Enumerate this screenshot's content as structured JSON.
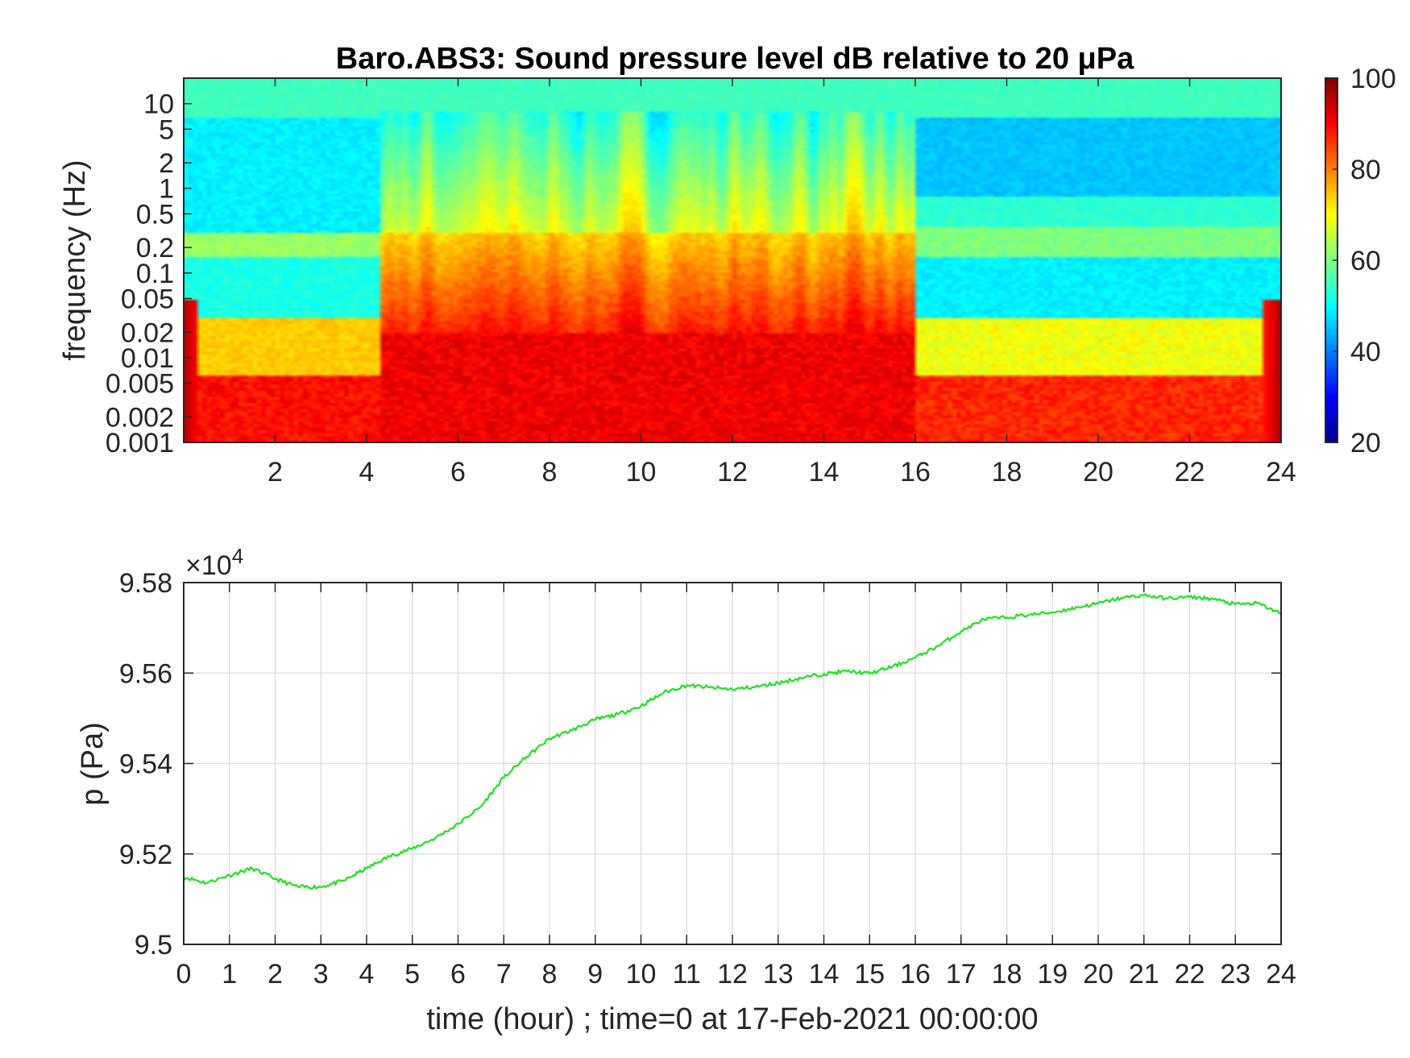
{
  "chart_data": [
    {
      "type": "heatmap",
      "title": "Baro.ABS3: Sound pressure level dB relative to 20 μPa",
      "ylabel": "frequency (Hz)",
      "xlabel": "",
      "xlim": [
        0,
        24
      ],
      "ylim": [
        0.001,
        20
      ],
      "yscale": "log",
      "x_ticks": [
        "2",
        "4",
        "6",
        "8",
        "10",
        "12",
        "14",
        "16",
        "18",
        "20",
        "22",
        "24"
      ],
      "y_ticks": [
        "0.001",
        "0.002",
        "0.005",
        "0.01",
        "0.02",
        "0.05",
        "0.1",
        "0.2",
        "0.5",
        "1",
        "2",
        "5",
        "10"
      ],
      "colormap": "jet",
      "color_range": [
        20,
        100
      ],
      "colorbar_ticks": [
        "20",
        "40",
        "60",
        "80",
        "100"
      ],
      "grid": false,
      "activity_segments": [
        {
          "x": [
            0,
            4.3
          ],
          "level": "moderate"
        },
        {
          "x": [
            4.3,
            16.0
          ],
          "level": "high"
        },
        {
          "x": [
            16.0,
            24
          ],
          "level": "low"
        }
      ]
    },
    {
      "type": "line",
      "title": "",
      "xlabel": "time (hour) ; time=0 at 17-Feb-2021 00:00:00",
      "ylabel": "p (Pa)",
      "exponent_label": "×10",
      "exponent_power": "4",
      "xlim": [
        0,
        24
      ],
      "ylim": [
        9.5,
        9.58
      ],
      "x_ticks": [
        "0",
        "1",
        "2",
        "3",
        "4",
        "5",
        "6",
        "7",
        "8",
        "9",
        "10",
        "11",
        "12",
        "13",
        "14",
        "15",
        "16",
        "17",
        "18",
        "19",
        "20",
        "21",
        "22",
        "23",
        "24"
      ],
      "y_ticks": [
        "9.5",
        "9.52",
        "9.54",
        "9.56",
        "9.58"
      ],
      "grid": true,
      "line_color": "#22e022",
      "series": [
        {
          "x": [
            0,
            0.5,
            1,
            1.5,
            2,
            2.5,
            3,
            3.5,
            4,
            4.5,
            5,
            5.5,
            6,
            6.5,
            7,
            7.5,
            8,
            8.5,
            9,
            9.5,
            10,
            10.5,
            11,
            11.5,
            12,
            12.5,
            13,
            13.5,
            14,
            14.5,
            15,
            15.5,
            16,
            16.5,
            17,
            17.5,
            18,
            18.5,
            19,
            19.5,
            20,
            20.5,
            21,
            21.5,
            22,
            22.5,
            23,
            23.5,
            24
          ],
          "y": [
            9.5149,
            9.5136,
            9.5153,
            9.5168,
            9.5145,
            9.5127,
            9.5127,
            9.5141,
            9.5168,
            9.5195,
            9.5212,
            9.5235,
            9.5266,
            9.5305,
            9.5369,
            9.5415,
            9.5455,
            9.5474,
            9.5497,
            9.5509,
            9.5527,
            9.5557,
            9.5573,
            9.5568,
            9.5564,
            9.5569,
            9.5578,
            9.5589,
            9.5598,
            9.5604,
            9.5599,
            9.5614,
            9.5634,
            9.566,
            9.5692,
            9.5719,
            9.5723,
            9.5729,
            9.5734,
            9.5744,
            9.5754,
            9.5766,
            9.5772,
            9.5765,
            9.5768,
            9.5764,
            9.5752,
            9.5754,
            9.5731
          ]
        }
      ]
    }
  ]
}
